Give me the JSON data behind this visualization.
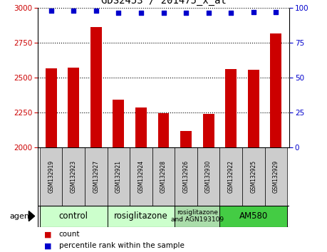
{
  "title": "GDS2453 / 201475_x_at",
  "samples": [
    "GSM132919",
    "GSM132923",
    "GSM132927",
    "GSM132921",
    "GSM132924",
    "GSM132928",
    "GSM132926",
    "GSM132930",
    "GSM132922",
    "GSM132925",
    "GSM132929"
  ],
  "counts": [
    2565,
    2570,
    2860,
    2340,
    2285,
    2245,
    2115,
    2240,
    2560,
    2555,
    2815
  ],
  "percentiles": [
    98,
    98,
    98,
    96,
    96,
    96,
    96,
    96,
    96,
    97,
    97
  ],
  "ylim_left": [
    2000,
    3000
  ],
  "ylim_right": [
    0,
    100
  ],
  "yticks_left": [
    2000,
    2250,
    2500,
    2750,
    3000
  ],
  "yticks_right": [
    0,
    25,
    50,
    75,
    100
  ],
  "bar_color": "#cc0000",
  "dot_color": "#0000cc",
  "title_fontsize": 10,
  "groups": [
    {
      "label": "control",
      "start": 0,
      "end": 2,
      "color": "#ccffcc"
    },
    {
      "label": "rosiglitazone",
      "start": 3,
      "end": 5,
      "color": "#ccffcc"
    },
    {
      "label": "rosiglitazone\nand AGN193109",
      "start": 6,
      "end": 7,
      "color": "#aaddaa"
    },
    {
      "label": "AM580",
      "start": 8,
      "end": 10,
      "color": "#44cc44"
    }
  ],
  "agent_label": "agent",
  "legend_count_label": "count",
  "legend_pct_label": "percentile rank within the sample",
  "tick_bg_color": "#cccccc",
  "bg_white": "#ffffff"
}
